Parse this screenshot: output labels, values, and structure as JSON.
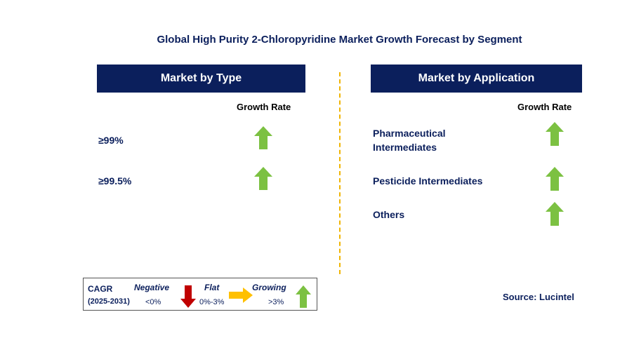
{
  "chart_data": {
    "type": "table",
    "title": "Global High Purity 2-Chloropyridine Market Growth Forecast by Segment",
    "panels": [
      {
        "header": "Market by Type",
        "column": "Growth Rate",
        "rows": [
          {
            "label": "≥99%",
            "trend": "growing"
          },
          {
            "label": "≥99.5%",
            "trend": "growing"
          }
        ]
      },
      {
        "header": "Market by Application",
        "column": "Growth Rate",
        "rows": [
          {
            "label": "Pharmaceutical Intermediates",
            "line1": "Pharmaceutical",
            "line2": "Intermediates",
            "trend": "growing"
          },
          {
            "label": "Pesticide Intermediates",
            "trend": "growing"
          },
          {
            "label": "Others",
            "trend": "growing"
          }
        ]
      }
    ],
    "legend": {
      "title": "CAGR",
      "period": "(2025-2031)",
      "negative": {
        "label": "Negative",
        "range": "<0%",
        "color": "#c00000"
      },
      "flat": {
        "label": "Flat",
        "range": "0%-3%",
        "color": "#ffc000"
      },
      "growing": {
        "label": "Growing",
        "range": ">3%",
        "color": "#7cc142"
      }
    },
    "source": "Source: Lucintel"
  }
}
